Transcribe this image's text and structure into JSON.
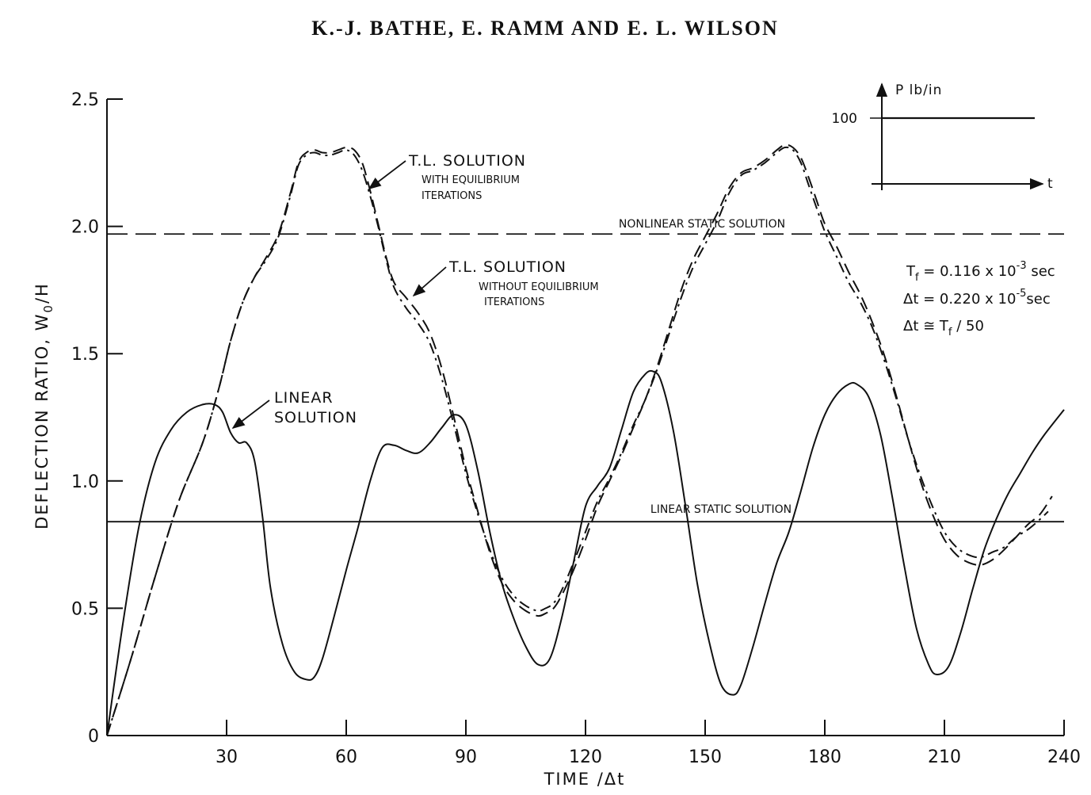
{
  "header": {
    "authors": "K.-J. BATHE, E. RAMM AND E. L. WILSON"
  },
  "chart_data": {
    "type": "line",
    "xlabel": "TIME /Δt",
    "ylabel": "DEFLECTION RATIO, W",
    "ylabel_sub": "0",
    "ylabel_tail": "/H",
    "xlim": [
      0,
      240
    ],
    "ylim": [
      0,
      2.5
    ],
    "x_ticks": [
      30,
      60,
      90,
      120,
      150,
      180,
      210,
      240
    ],
    "x_tick_labels": [
      "30",
      "60",
      "90",
      "120",
      "150",
      "180",
      "210",
      "240"
    ],
    "y_ticks": [
      0,
      0.5,
      1.0,
      1.5,
      2.0,
      2.5
    ],
    "y_tick_labels": [
      "0",
      "0.5",
      "1.0",
      "1.5",
      "2.0",
      "2.5"
    ],
    "grid": false,
    "series": [
      {
        "name": "LINEAR SOLUTION",
        "style": "solid",
        "x": [
          0,
          4,
          8,
          12,
          16,
          20,
          24,
          27,
          29,
          31,
          33,
          35,
          37,
          39,
          41,
          44,
          47,
          50,
          52,
          54,
          57,
          60,
          63,
          66,
          69,
          72,
          75,
          78,
          81,
          84,
          87,
          90,
          93,
          96,
          99,
          102,
          105,
          108,
          111,
          114,
          117,
          120,
          123,
          126,
          129,
          132,
          135,
          137,
          139,
          142,
          145,
          148,
          151,
          154,
          157,
          159,
          162,
          165,
          168,
          171,
          174,
          177,
          180,
          183,
          186,
          188,
          191,
          194,
          197,
          200,
          203,
          206,
          208,
          211,
          214,
          217,
          220,
          223,
          226,
          229,
          232,
          235,
          240
        ],
        "values": [
          0,
          0.44,
          0.82,
          1.07,
          1.2,
          1.27,
          1.3,
          1.3,
          1.27,
          1.19,
          1.15,
          1.15,
          1.08,
          0.86,
          0.58,
          0.36,
          0.25,
          0.22,
          0.23,
          0.3,
          0.47,
          0.65,
          0.82,
          1.0,
          1.13,
          1.14,
          1.12,
          1.11,
          1.15,
          1.21,
          1.26,
          1.22,
          1.04,
          0.8,
          0.6,
          0.46,
          0.35,
          0.28,
          0.3,
          0.46,
          0.68,
          0.9,
          0.98,
          1.05,
          1.2,
          1.35,
          1.42,
          1.43,
          1.39,
          1.2,
          0.91,
          0.6,
          0.37,
          0.2,
          0.16,
          0.2,
          0.35,
          0.52,
          0.68,
          0.8,
          0.96,
          1.13,
          1.26,
          1.34,
          1.38,
          1.38,
          1.33,
          1.18,
          0.93,
          0.66,
          0.42,
          0.28,
          0.24,
          0.27,
          0.4,
          0.57,
          0.73,
          0.85,
          0.95,
          1.03,
          1.11,
          1.18,
          1.28
        ]
      },
      {
        "name": "T.L. SOLUTION WITH EQUILIBRIUM ITERATIONS",
        "style": "dash-dot",
        "x": [
          0,
          6,
          12,
          18,
          24,
          28,
          31,
          34,
          37,
          40,
          43,
          46,
          48,
          50,
          52,
          54,
          56,
          58,
          60,
          62,
          64,
          66,
          68,
          70,
          72,
          75,
          78,
          81,
          84,
          87,
          90,
          93,
          96,
          99,
          102,
          105,
          108,
          110,
          112,
          114,
          117,
          120,
          123,
          126,
          129,
          132,
          135,
          138,
          141,
          144,
          147,
          150,
          153,
          156,
          159,
          162,
          165,
          168,
          170,
          172,
          174,
          176,
          178,
          180,
          183,
          186,
          189,
          192,
          195,
          198,
          201,
          204,
          207,
          210,
          213,
          216,
          219,
          222,
          225,
          228,
          231,
          234,
          236
        ],
        "values": [
          0,
          0.3,
          0.62,
          0.92,
          1.15,
          1.36,
          1.55,
          1.7,
          1.8,
          1.87,
          1.96,
          2.12,
          2.24,
          2.28,
          2.29,
          2.28,
          2.28,
          2.29,
          2.3,
          2.28,
          2.22,
          2.12,
          2.0,
          1.87,
          1.76,
          1.68,
          1.62,
          1.54,
          1.4,
          1.22,
          1.03,
          0.87,
          0.73,
          0.62,
          0.55,
          0.51,
          0.49,
          0.5,
          0.52,
          0.57,
          0.68,
          0.8,
          0.92,
          1.01,
          1.11,
          1.22,
          1.32,
          1.44,
          1.58,
          1.72,
          1.84,
          1.93,
          2.02,
          2.13,
          2.2,
          2.22,
          2.25,
          2.29,
          2.31,
          2.3,
          2.25,
          2.16,
          2.07,
          1.98,
          1.88,
          1.78,
          1.7,
          1.6,
          1.47,
          1.32,
          1.16,
          1.02,
          0.9,
          0.8,
          0.74,
          0.71,
          0.7,
          0.72,
          0.74,
          0.78,
          0.81,
          0.85,
          0.88
        ]
      },
      {
        "name": "T.L. SOLUTION WITHOUT EQUILIBRIUM ITERATIONS",
        "style": "dashed",
        "x": [
          0,
          6,
          12,
          18,
          24,
          28,
          31,
          34,
          37,
          40,
          43,
          46,
          48,
          50,
          52,
          54,
          56,
          58,
          60,
          62,
          64,
          66,
          68,
          70,
          72,
          75,
          78,
          81,
          84,
          87,
          90,
          93,
          96,
          99,
          102,
          105,
          108,
          110,
          112,
          114,
          117,
          120,
          123,
          126,
          129,
          132,
          135,
          138,
          141,
          144,
          147,
          150,
          153,
          156,
          159,
          162,
          165,
          168,
          170,
          172,
          174,
          176,
          178,
          180,
          183,
          186,
          189,
          192,
          195,
          198,
          201,
          204,
          207,
          210,
          213,
          216,
          219,
          222,
          225,
          228,
          231,
          234,
          237
        ],
        "values": [
          0,
          0.3,
          0.62,
          0.92,
          1.15,
          1.36,
          1.55,
          1.7,
          1.8,
          1.88,
          1.97,
          2.13,
          2.25,
          2.29,
          2.3,
          2.29,
          2.29,
          2.3,
          2.31,
          2.3,
          2.25,
          2.14,
          2.01,
          1.88,
          1.78,
          1.72,
          1.66,
          1.58,
          1.44,
          1.25,
          1.05,
          0.88,
          0.72,
          0.6,
          0.53,
          0.49,
          0.47,
          0.48,
          0.5,
          0.55,
          0.65,
          0.77,
          0.9,
          1.0,
          1.1,
          1.21,
          1.32,
          1.45,
          1.6,
          1.75,
          1.87,
          1.96,
          2.05,
          2.15,
          2.21,
          2.23,
          2.26,
          2.3,
          2.32,
          2.31,
          2.27,
          2.19,
          2.1,
          2.01,
          1.92,
          1.82,
          1.73,
          1.62,
          1.49,
          1.33,
          1.16,
          1.0,
          0.87,
          0.77,
          0.71,
          0.68,
          0.67,
          0.69,
          0.73,
          0.78,
          0.83,
          0.87,
          0.94
        ]
      }
    ],
    "reference_lines": [
      {
        "name": "NONLINEAR STATIC SOLUTION",
        "y": 1.97,
        "style": "long-dash"
      },
      {
        "name": "LINEAR STATIC SOLUTION",
        "y": 0.84,
        "style": "solid"
      }
    ],
    "annotations": {
      "tl_with": {
        "line1": "T.L. SOLUTION",
        "line2": "WITH EQUILIBRIUM",
        "line3": "ITERATIONS"
      },
      "tl_without": {
        "line1": "T.L. SOLUTION",
        "line2": "WITHOUT EQUILIBRIUM",
        "line3": "ITERATIONS"
      },
      "linear": {
        "line1": "LINEAR",
        "line2": "SOLUTION"
      },
      "params": {
        "tf_a": "T",
        "tf_sub": "f",
        "tf_b": " = 0.116 x 10",
        "tf_sup": "-3",
        "tf_c": " sec",
        "dt_a": "Δt = 0.220 x 10",
        "dt_sup": "-5",
        "dt_c": "sec",
        "rel_a": "Δt ≅ T",
        "rel_sub": "f",
        "rel_c": " / 50"
      }
    },
    "inset": {
      "ylabel": "P lb/in",
      "xlabel": "t",
      "level_label": "100",
      "level": 100
    }
  }
}
